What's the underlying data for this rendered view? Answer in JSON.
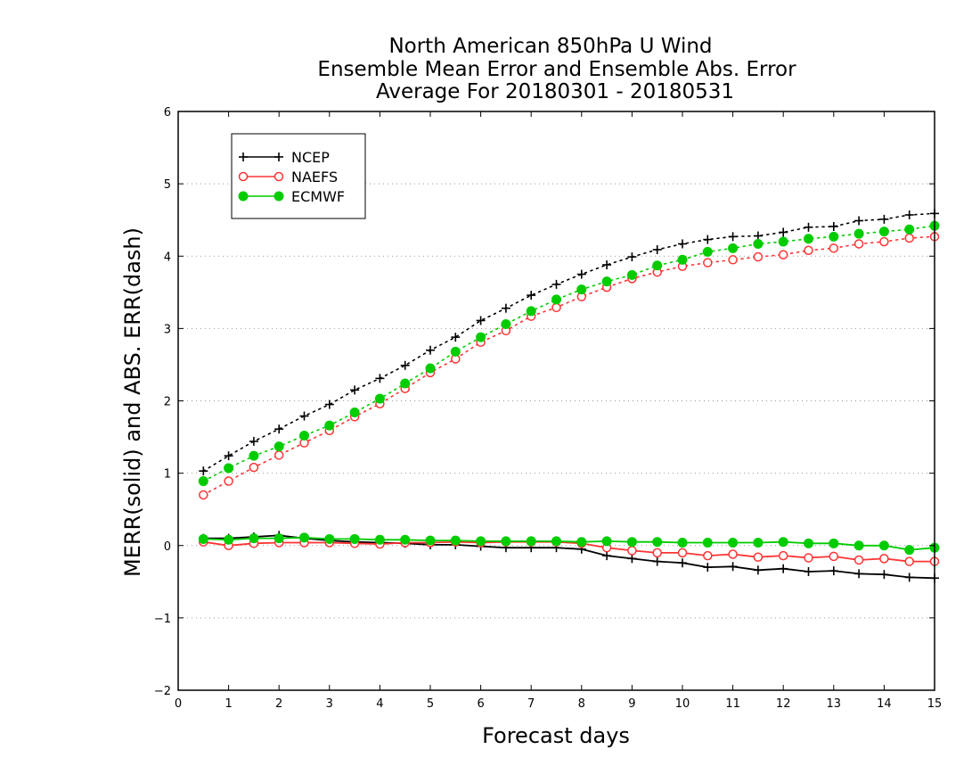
{
  "chart_data": {
    "type": "line",
    "title_lines": [
      "North American 850hPa U Wind",
      "Ensemble Mean Error and Ensemble Abs. Error",
      "Average For 20180301 - 20180531"
    ],
    "xlabel": "Forecast days",
    "ylabel": "MERR(solid) and ABS. ERR(dash)",
    "xlim": [
      0,
      15
    ],
    "ylim": [
      -2,
      6
    ],
    "xticks": [
      0,
      1,
      2,
      3,
      4,
      5,
      6,
      7,
      8,
      9,
      10,
      11,
      12,
      13,
      14,
      15
    ],
    "yticks": [
      -2,
      -1,
      0,
      1,
      2,
      3,
      4,
      5,
      6
    ],
    "grid": "horizontal dotted",
    "legend_position": "top-left",
    "x": [
      0.5,
      1,
      1.5,
      2,
      2.5,
      3,
      3.5,
      4,
      4.5,
      5,
      5.5,
      6,
      6.5,
      7,
      7.5,
      8,
      8.5,
      9,
      9.5,
      10,
      10.5,
      11,
      11.5,
      12,
      12.5,
      13,
      13.5,
      14,
      14.5,
      15
    ],
    "series": [
      {
        "name": "NCEP",
        "color": "#000000",
        "marker": "plus",
        "abs_error": [
          1.03,
          1.24,
          1.44,
          1.61,
          1.79,
          1.95,
          2.15,
          2.31,
          2.49,
          2.7,
          2.88,
          3.11,
          3.28,
          3.46,
          3.61,
          3.75,
          3.88,
          3.99,
          4.09,
          4.17,
          4.23,
          4.27,
          4.28,
          4.33,
          4.4,
          4.41,
          4.49,
          4.51,
          4.57,
          4.59
        ],
        "mean_error": [
          0.1,
          0.1,
          0.12,
          0.14,
          0.1,
          0.07,
          0.05,
          0.04,
          0.03,
          0.01,
          0.01,
          -0.01,
          -0.03,
          -0.03,
          -0.03,
          -0.05,
          -0.14,
          -0.18,
          -0.22,
          -0.24,
          -0.3,
          -0.29,
          -0.34,
          -0.32,
          -0.36,
          -0.35,
          -0.39,
          -0.4,
          -0.44,
          -0.45
        ]
      },
      {
        "name": "NAEFS",
        "color": "#ff3333",
        "marker": "open-circle",
        "abs_error": [
          0.7,
          0.89,
          1.08,
          1.25,
          1.42,
          1.59,
          1.78,
          1.96,
          2.17,
          2.39,
          2.58,
          2.81,
          2.97,
          3.17,
          3.29,
          3.44,
          3.57,
          3.69,
          3.78,
          3.86,
          3.91,
          3.95,
          3.99,
          4.02,
          4.08,
          4.11,
          4.17,
          4.2,
          4.25,
          4.27
        ],
        "mean_error": [
          0.05,
          0.0,
          0.03,
          0.04,
          0.04,
          0.04,
          0.03,
          0.02,
          0.04,
          0.04,
          0.05,
          0.04,
          0.05,
          0.05,
          0.05,
          0.03,
          -0.03,
          -0.07,
          -0.1,
          -0.1,
          -0.14,
          -0.12,
          -0.16,
          -0.14,
          -0.17,
          -0.15,
          -0.2,
          -0.18,
          -0.22,
          -0.22
        ]
      },
      {
        "name": "ECMWF",
        "color": "#00cc00",
        "marker": "filled-circle",
        "abs_error": [
          0.89,
          1.07,
          1.24,
          1.37,
          1.52,
          1.66,
          1.84,
          2.03,
          2.24,
          2.45,
          2.68,
          2.88,
          3.06,
          3.24,
          3.4,
          3.54,
          3.65,
          3.74,
          3.87,
          3.95,
          4.06,
          4.11,
          4.17,
          4.2,
          4.24,
          4.27,
          4.31,
          4.34,
          4.37,
          4.42
        ],
        "mean_error": [
          0.09,
          0.08,
          0.1,
          0.1,
          0.11,
          0.09,
          0.09,
          0.08,
          0.08,
          0.07,
          0.07,
          0.06,
          0.06,
          0.06,
          0.06,
          0.05,
          0.06,
          0.05,
          0.05,
          0.04,
          0.04,
          0.04,
          0.04,
          0.05,
          0.03,
          0.03,
          0.0,
          0.0,
          -0.06,
          -0.03
        ]
      }
    ]
  }
}
